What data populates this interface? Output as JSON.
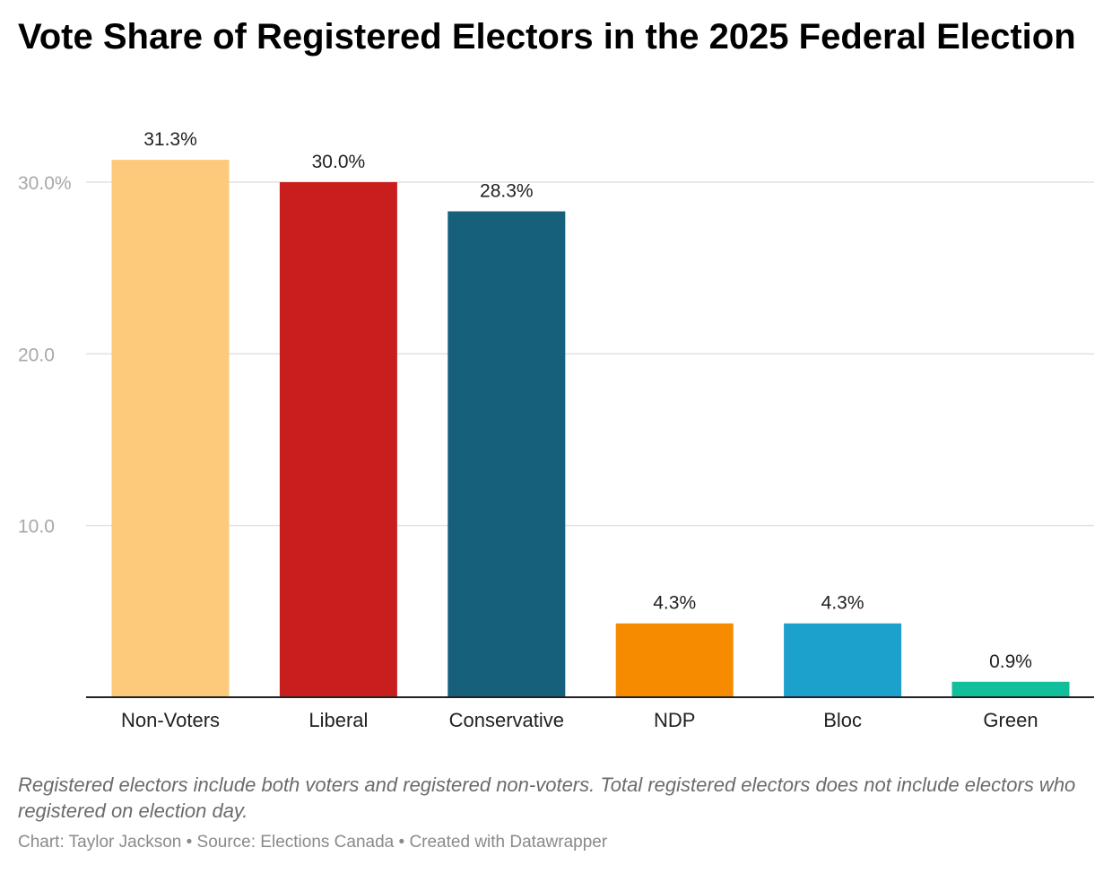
{
  "chart_data": {
    "type": "bar",
    "title": "Vote Share of Registered Electors in the 2025 Federal Election",
    "categories": [
      "Non-Voters",
      "Liberal",
      "Conservative",
      "NDP",
      "Bloc",
      "Green"
    ],
    "values": [
      31.3,
      30.0,
      28.3,
      4.3,
      4.3,
      0.9
    ],
    "data_labels": [
      "31.3%",
      "30.0%",
      "28.3%",
      "4.3%",
      "4.3%",
      "0.9%"
    ],
    "colors": [
      "#fdc97a",
      "#c81e1e",
      "#17607c",
      "#f78b00",
      "#1ba1cc",
      "#13bf9b"
    ],
    "ylim": [
      0,
      30
    ],
    "yticks": [
      10,
      20,
      30
    ],
    "ytick_labels": [
      "10.0",
      "20.0",
      "30.0%"
    ],
    "grid": true,
    "xlabel": "",
    "ylabel": ""
  },
  "notes": "Registered electors include both voters and registered non-voters. Total registered electors does not include electors who registered on election day.",
  "credit": "Chart: Taylor Jackson • Source: Elections Canada • Created with Datawrapper"
}
